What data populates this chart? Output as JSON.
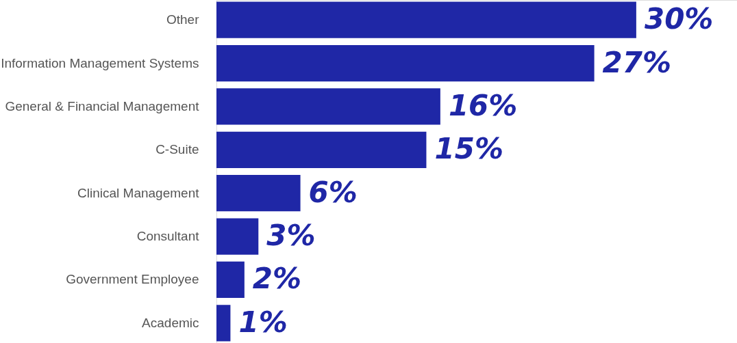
{
  "chart_data": {
    "type": "bar",
    "orientation": "horizontal",
    "categories": [
      "Other",
      "Information Management Systems",
      "General & Financial Management",
      "C-Suite",
      "Clinical Management",
      "Consultant",
      "Government Employee",
      "Academic"
    ],
    "values": [
      30,
      27,
      16,
      15,
      6,
      3,
      2,
      1
    ],
    "value_labels": [
      "30%",
      "27%",
      "16%",
      "15%",
      "6%",
      "3%",
      "2%",
      "1%"
    ],
    "color": "#1f27a6"
  }
}
